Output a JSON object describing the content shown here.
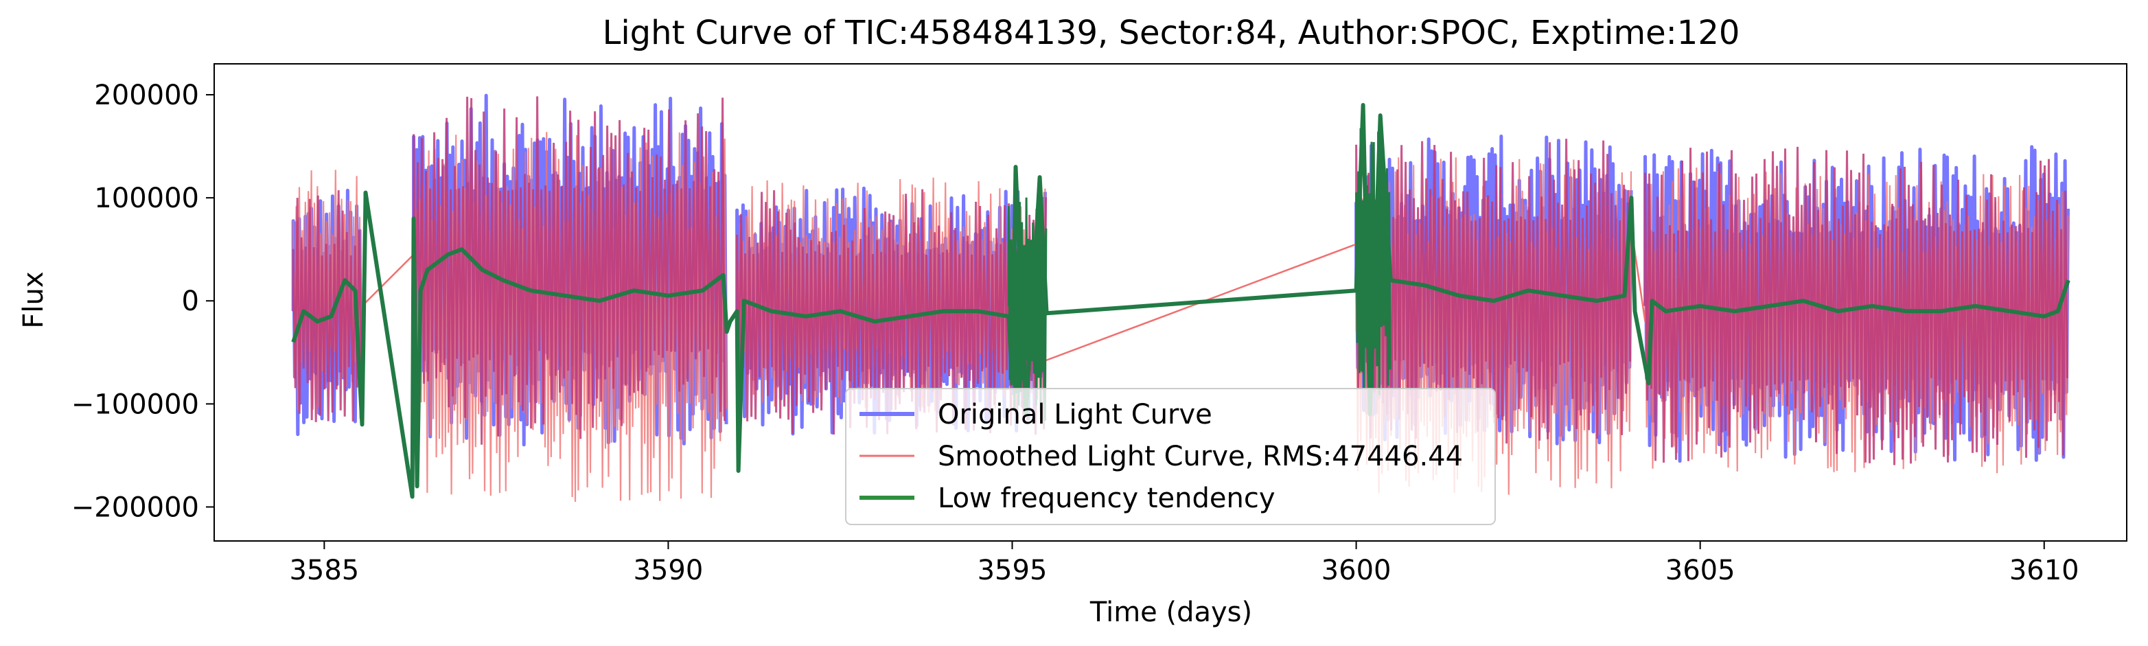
{
  "chart_data": {
    "type": "line",
    "title": "Light Curve of TIC:458484139, Sector:84, Author:SPOC, Exptime:120",
    "xlabel": "Time (days)",
    "ylabel": "Flux",
    "xlim": [
      3583.4,
      3611.2
    ],
    "ylim": [
      -233000,
      230000
    ],
    "xticks": [
      3585,
      3590,
      3595,
      3600,
      3605,
      3610
    ],
    "xtick_labels": [
      "3585",
      "3590",
      "3595",
      "3600",
      "3605",
      "3610"
    ],
    "yticks": [
      200000,
      100000,
      0,
      -100000,
      -200000
    ],
    "ytick_labels": [
      "200000",
      "100000",
      "0",
      "−100000",
      "−200000"
    ],
    "grid": false,
    "legend_position": "lower center",
    "series": [
      {
        "name": "Original Light Curve",
        "color": "#7777ff",
        "style": "noisy-band",
        "segments": [
          {
            "x_start": 3584.55,
            "x_end": 3585.55,
            "low": -130000,
            "high": 110000
          },
          {
            "x_start": 3586.3,
            "x_end": 3590.85,
            "low": -140000,
            "high": 200000
          },
          {
            "x_start": 3591.0,
            "x_end": 3595.5,
            "low": -130000,
            "high": 110000
          },
          {
            "x_start": 3600.0,
            "x_end": 3604.0,
            "low": -140000,
            "high": 160000
          },
          {
            "x_start": 3604.2,
            "x_end": 3610.35,
            "low": -160000,
            "high": 150000
          }
        ]
      },
      {
        "name": "Smoothed Light Curve, RMS:47446.44",
        "color": "#f07070",
        "style": "noisy-band",
        "rms": 47446.44,
        "segments": [
          {
            "x_start": 3584.55,
            "x_end": 3585.55,
            "low": -110000,
            "high": 130000
          },
          {
            "x_start": 3586.3,
            "x_end": 3590.85,
            "low": -200000,
            "high": 170000
          },
          {
            "x_start": 3591.0,
            "x_end": 3595.5,
            "low": -110000,
            "high": 120000
          },
          {
            "x_start": 3600.0,
            "x_end": 3604.0,
            "low": -200000,
            "high": 140000
          },
          {
            "x_start": 3604.2,
            "x_end": 3610.35,
            "low": -170000,
            "high": 130000
          }
        ],
        "gap_lines": [
          {
            "x": [
              3585.55,
              3586.3
            ],
            "y": [
              -5000,
              45000
            ]
          },
          {
            "x": [
              3595.0,
              3600.0
            ],
            "y": [
              -70000,
              55000
            ]
          },
          {
            "x": [
              3604.0,
              3604.2
            ],
            "y": [
              70000,
              -20000
            ]
          }
        ]
      },
      {
        "name": "Low frequency tendency",
        "color": "#227a45",
        "style": "line",
        "x": [
          3584.55,
          3584.7,
          3584.9,
          3585.1,
          3585.3,
          3585.45,
          3585.55,
          3585.6,
          3585.6,
          3586.28,
          3586.3,
          3586.35,
          3586.4,
          3586.5,
          3586.8,
          3587.0,
          3587.3,
          3587.6,
          3588.0,
          3588.5,
          3589.0,
          3589.5,
          3590.0,
          3590.5,
          3590.8,
          3590.85,
          3590.9,
          3591.0,
          3591.02,
          3591.1,
          3591.5,
          3592.0,
          3592.5,
          3593.0,
          3593.5,
          3594.0,
          3594.5,
          3594.95,
          3595.0,
          3595.05,
          3595.2,
          3595.4,
          3595.5,
          3600.0,
          3600.1,
          3600.2,
          3600.35,
          3600.5,
          3601.0,
          3601.5,
          3602.0,
          3602.5,
          3603.0,
          3603.5,
          3603.9,
          3604.0,
          3604.05,
          3604.25,
          3604.3,
          3604.5,
          3605.0,
          3605.5,
          3606.0,
          3606.5,
          3607.0,
          3607.5,
          3608.0,
          3608.5,
          3609.0,
          3609.5,
          3610.0,
          3610.2,
          3610.35
        ],
        "y": [
          -40000,
          -10000,
          -20000,
          -15000,
          20000,
          10000,
          -120000,
          100000,
          105000,
          -190000,
          80000,
          -180000,
          10000,
          30000,
          45000,
          50000,
          30000,
          20000,
          10000,
          5000,
          0,
          10000,
          5000,
          10000,
          25000,
          -30000,
          -20000,
          -10000,
          -165000,
          0,
          -10000,
          -15000,
          -10000,
          -20000,
          -15000,
          -10000,
          -10000,
          -15000,
          -80000,
          130000,
          -110000,
          120000,
          -12000,
          10000,
          190000,
          -110000,
          180000,
          20000,
          15000,
          5000,
          0,
          10000,
          5000,
          0,
          5000,
          100000,
          -10000,
          -80000,
          0,
          -10000,
          -5000,
          -10000,
          -5000,
          0,
          -10000,
          -5000,
          -10000,
          -10000,
          -5000,
          -10000,
          -15000,
          -10000,
          20000
        ]
      }
    ]
  }
}
